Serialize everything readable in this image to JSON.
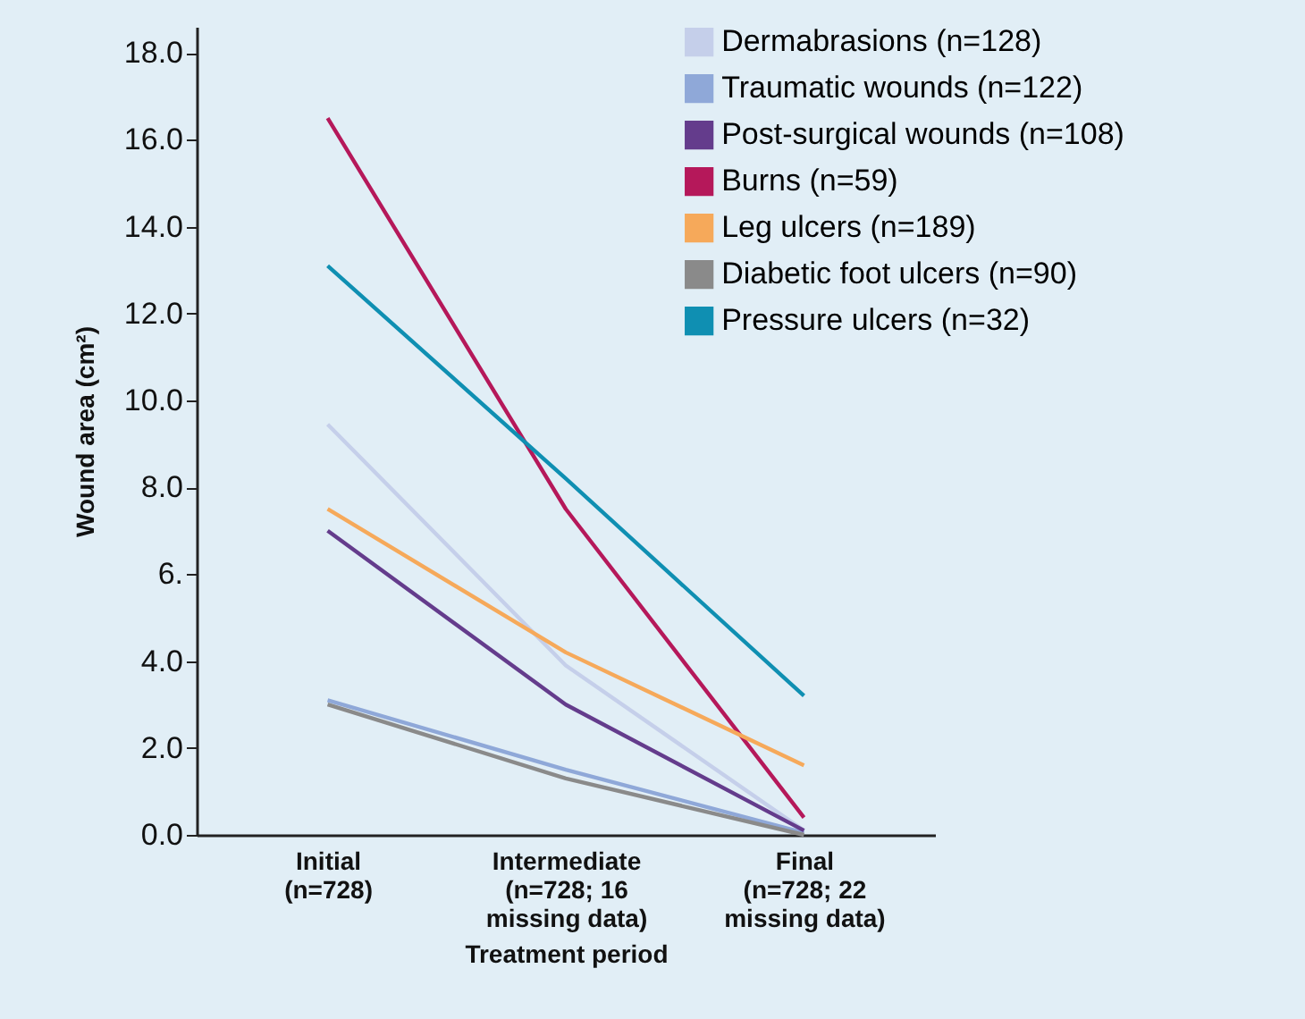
{
  "chart_data": {
    "type": "line",
    "xlabel": "Treatment period",
    "ylabel": "Wound area (cm²)",
    "categories": [
      "Initial\n(n=728)",
      "Intermediate\n(n=728; 16\nmissing data)",
      "Final\n(n=728; 22\nmissing data)"
    ],
    "series": [
      {
        "name": "Dermabrasions (n=128)",
        "color": "#c5cfea",
        "values": [
          9.45,
          3.9,
          0.1
        ]
      },
      {
        "name": "Traumatic wounds (n=122)",
        "color": "#8fa8d8",
        "values": [
          3.1,
          1.5,
          0.05
        ]
      },
      {
        "name": "Post-surgical wounds (n=108)",
        "color": "#643c8c",
        "values": [
          7.0,
          3.0,
          0.1
        ]
      },
      {
        "name": "Burns (n=59)",
        "color": "#b5185a",
        "values": [
          16.5,
          7.5,
          0.4
        ]
      },
      {
        "name": "Leg ulcers (n=189)",
        "color": "#f6a95a",
        "values": [
          7.5,
          4.2,
          1.6
        ]
      },
      {
        "name": "Diabetic foot ulcers (n=90)",
        "color": "#8a8a8a",
        "values": [
          3.0,
          1.3,
          0.0
        ]
      },
      {
        "name": "Pressure ulcers (n=32)",
        "color": "#0f8fb2",
        "values": [
          13.1,
          8.2,
          3.2
        ]
      }
    ],
    "ylim": [
      0,
      18.6
    ],
    "yticks": [
      {
        "value": 0,
        "label": "0.0"
      },
      {
        "value": 2,
        "label": "2.0"
      },
      {
        "value": 4,
        "label": "4.0"
      },
      {
        "value": 6,
        "label": "6."
      },
      {
        "value": 8,
        "label": "8.0"
      },
      {
        "value": 10,
        "label": "10.0"
      },
      {
        "value": 12,
        "label": "12.0"
      },
      {
        "value": 14,
        "label": "14.0"
      },
      {
        "value": 16,
        "label": "16.0"
      },
      {
        "value": 18,
        "label": "18.0"
      }
    ],
    "legend": "top right",
    "grid": false,
    "marker": "none",
    "line_style": "solid"
  }
}
